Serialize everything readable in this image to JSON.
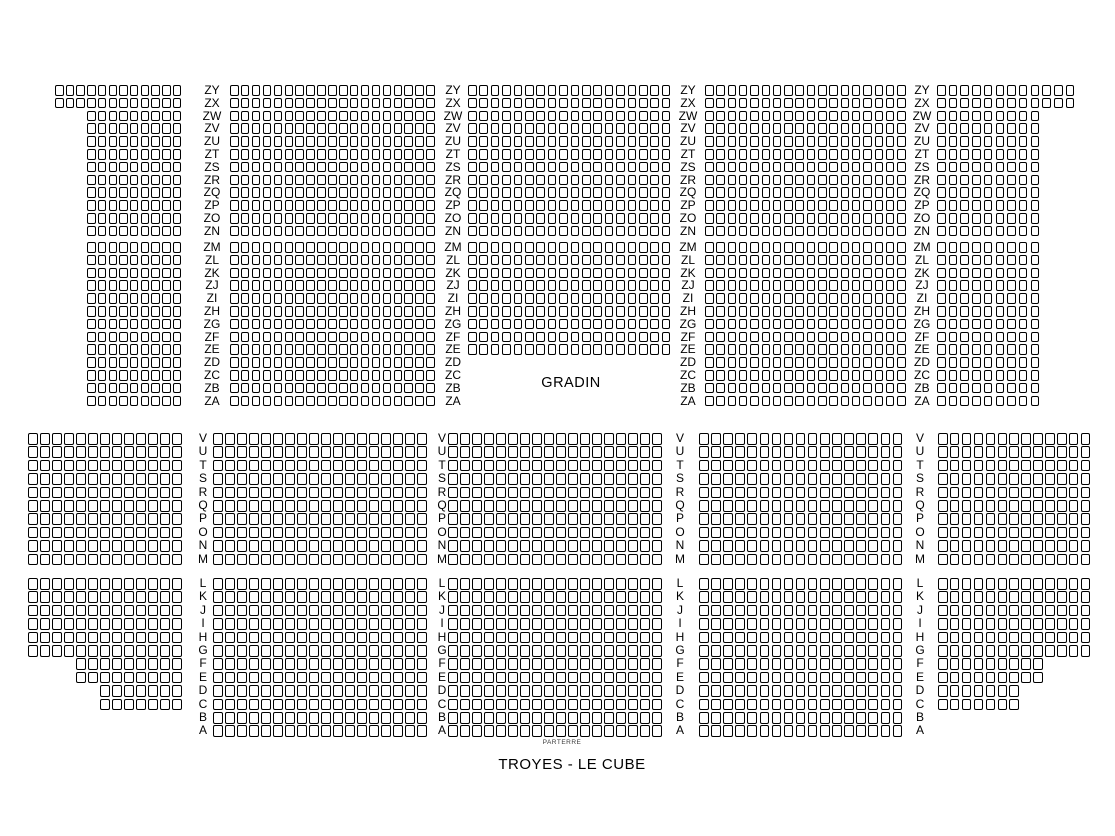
{
  "venue": {
    "title": "TROYES - LE CUBE"
  },
  "gradin": {
    "section_label": "GRADIN",
    "upper_rows": [
      {
        "label": "ZY",
        "blocks": [
          12,
          19,
          18,
          18,
          12
        ]
      },
      {
        "label": "ZX",
        "blocks": [
          12,
          19,
          18,
          18,
          12
        ]
      },
      {
        "label": "ZW",
        "blocks": [
          9,
          19,
          18,
          18,
          9
        ]
      },
      {
        "label": "ZV",
        "blocks": [
          9,
          19,
          18,
          18,
          9
        ]
      },
      {
        "label": "ZU",
        "blocks": [
          9,
          19,
          18,
          18,
          9
        ]
      },
      {
        "label": "ZT",
        "blocks": [
          9,
          19,
          18,
          18,
          9
        ]
      },
      {
        "label": "ZS",
        "blocks": [
          9,
          19,
          18,
          18,
          9
        ]
      },
      {
        "label": "ZR",
        "blocks": [
          9,
          19,
          18,
          18,
          9
        ]
      },
      {
        "label": "ZQ",
        "blocks": [
          9,
          19,
          18,
          18,
          9
        ]
      },
      {
        "label": "ZP",
        "blocks": [
          9,
          19,
          18,
          18,
          9
        ]
      },
      {
        "label": "ZO",
        "blocks": [
          9,
          19,
          18,
          18,
          9
        ]
      },
      {
        "label": "ZN",
        "blocks": [
          9,
          19,
          18,
          18,
          9
        ]
      }
    ],
    "lower_rows": [
      {
        "label": "ZM",
        "blocks": [
          9,
          19,
          18,
          18,
          9
        ]
      },
      {
        "label": "ZL",
        "blocks": [
          9,
          19,
          18,
          18,
          9
        ]
      },
      {
        "label": "ZK",
        "blocks": [
          9,
          19,
          18,
          18,
          9
        ]
      },
      {
        "label": "ZJ",
        "blocks": [
          9,
          19,
          18,
          18,
          9
        ]
      },
      {
        "label": "ZI",
        "blocks": [
          9,
          19,
          18,
          18,
          9
        ]
      },
      {
        "label": "ZH",
        "blocks": [
          9,
          19,
          18,
          18,
          9
        ]
      },
      {
        "label": "ZG",
        "blocks": [
          9,
          19,
          18,
          18,
          9
        ]
      },
      {
        "label": "ZF",
        "blocks": [
          9,
          19,
          18,
          18,
          9
        ]
      },
      {
        "label": "ZE",
        "blocks": [
          9,
          19,
          18,
          18,
          9
        ]
      },
      {
        "label": "ZD",
        "blocks": [
          9,
          19,
          0,
          18,
          9
        ]
      },
      {
        "label": "ZC",
        "blocks": [
          9,
          19,
          0,
          18,
          9
        ]
      },
      {
        "label": "ZB",
        "blocks": [
          9,
          19,
          0,
          18,
          9
        ]
      },
      {
        "label": "ZA",
        "blocks": [
          9,
          19,
          0,
          18,
          9
        ]
      }
    ]
  },
  "parterre": {
    "section_label": "PARTERRE",
    "upper_rows": [
      {
        "label": "V",
        "blocks": [
          13,
          18,
          18,
          17,
          13
        ]
      },
      {
        "label": "U",
        "blocks": [
          13,
          18,
          18,
          17,
          13
        ]
      },
      {
        "label": "T",
        "blocks": [
          13,
          18,
          18,
          17,
          13
        ]
      },
      {
        "label": "S",
        "blocks": [
          13,
          18,
          18,
          17,
          13
        ]
      },
      {
        "label": "R",
        "blocks": [
          13,
          18,
          18,
          17,
          13
        ]
      },
      {
        "label": "Q",
        "blocks": [
          13,
          18,
          18,
          17,
          13
        ]
      },
      {
        "label": "P",
        "blocks": [
          13,
          18,
          18,
          17,
          13
        ]
      },
      {
        "label": "O",
        "blocks": [
          13,
          18,
          18,
          17,
          13
        ]
      },
      {
        "label": "N",
        "blocks": [
          13,
          18,
          18,
          17,
          13
        ]
      },
      {
        "label": "M",
        "blocks": [
          13,
          18,
          18,
          17,
          13
        ]
      }
    ],
    "lower_rows": [
      {
        "label": "L",
        "blocks": [
          13,
          18,
          18,
          17,
          13
        ]
      },
      {
        "label": "K",
        "blocks": [
          13,
          18,
          18,
          17,
          13
        ]
      },
      {
        "label": "J",
        "blocks": [
          13,
          18,
          18,
          17,
          13
        ]
      },
      {
        "label": "I",
        "blocks": [
          13,
          18,
          18,
          17,
          13
        ]
      },
      {
        "label": "H",
        "blocks": [
          13,
          18,
          18,
          17,
          13
        ]
      },
      {
        "label": "G",
        "blocks": [
          13,
          18,
          18,
          17,
          13
        ]
      },
      {
        "label": "F",
        "blocks": [
          9,
          18,
          18,
          17,
          9
        ]
      },
      {
        "label": "E",
        "blocks": [
          9,
          18,
          18,
          17,
          9
        ]
      },
      {
        "label": "D",
        "blocks": [
          7,
          18,
          18,
          17,
          7
        ]
      },
      {
        "label": "C",
        "blocks": [
          7,
          18,
          18,
          17,
          7
        ]
      },
      {
        "label": "B",
        "blocks": [
          0,
          18,
          18,
          17,
          0
        ]
      },
      {
        "label": "A",
        "blocks": [
          0,
          18,
          18,
          17,
          0
        ]
      }
    ]
  }
}
